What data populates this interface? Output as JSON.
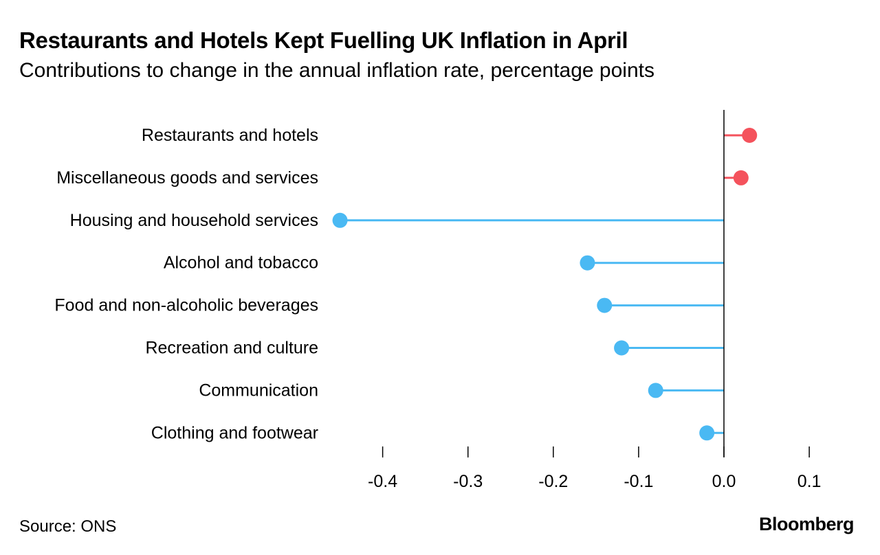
{
  "chart_data": {
    "type": "lollipop",
    "title": "Restaurants and Hotels Kept Fuelling UK Inflation in April",
    "subtitle": "Contributions to change in the annual inflation rate, percentage points",
    "categories": [
      "Restaurants and hotels",
      "Miscellaneous goods and services",
      "Housing and household services",
      "Alcohol and tobacco",
      "Food and non-alcoholic beverages",
      "Recreation and culture",
      "Communication",
      "Clothing and footwear"
    ],
    "values": [
      0.03,
      0.02,
      -0.45,
      -0.16,
      -0.14,
      -0.12,
      -0.08,
      -0.02
    ],
    "xlim": [
      -0.4,
      0.1
    ],
    "xticks": [
      -0.4,
      -0.3,
      -0.2,
      -0.1,
      0.0,
      0.1
    ],
    "xtick_labels": [
      "-0.4",
      "-0.3",
      "-0.2",
      "-0.1",
      "0.0",
      "0.1"
    ],
    "xlabel": "",
    "ylabel": "",
    "colors": {
      "positive": "#f4525c",
      "negative": "#4ab9f3",
      "axis": "#000000"
    }
  },
  "footer": {
    "source": "Source: ONS",
    "brand": "Bloomberg"
  }
}
